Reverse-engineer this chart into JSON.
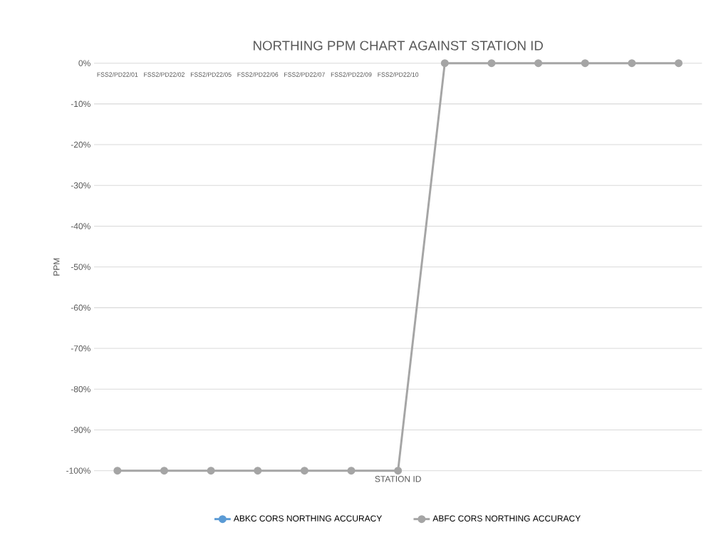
{
  "chart_data": {
    "type": "line",
    "title": "NORTHING PPM CHART AGAINST STATION ID",
    "xlabel": "STATION ID",
    "ylabel": "PPM",
    "categories": [
      "FSS2/PD22/01",
      "FSS2/PD22/02",
      "FSS2/PD22/05",
      "FSS2/PD22/06",
      "FSS2/PD22/07",
      "FSS2/PD22/09",
      "FSS2/PD22/10",
      null,
      null,
      null,
      null,
      null,
      null
    ],
    "series": [
      {
        "name": "ABKC CORS NORTHING ACCURACY",
        "color": "#5b9bd5",
        "values": [
          null,
          null,
          null,
          null,
          null,
          null,
          null,
          null,
          null,
          null,
          null,
          null,
          null
        ]
      },
      {
        "name": "ABFC CORS NORTHING ACCURACY",
        "color": "#a5a5a5",
        "values": [
          -100,
          -100,
          -100,
          -100,
          -100,
          -100,
          -100,
          0,
          0,
          0,
          0,
          0,
          0
        ]
      }
    ],
    "ylim": [
      -100,
      0
    ],
    "yticks": [
      {
        "value": 0,
        "label": "0%"
      },
      {
        "value": -10,
        "label": "-10%"
      },
      {
        "value": -20,
        "label": "-20%"
      },
      {
        "value": -30,
        "label": "-30%"
      },
      {
        "value": -40,
        "label": "-40%"
      },
      {
        "value": -50,
        "label": "-50%"
      },
      {
        "value": -60,
        "label": "-60%"
      },
      {
        "value": -70,
        "label": "-70%"
      },
      {
        "value": -80,
        "label": "-80%"
      },
      {
        "value": -90,
        "label": "-90%"
      },
      {
        "value": -100,
        "label": "-100%"
      }
    ],
    "grid": "y",
    "legend": "bottom",
    "marker": "circle"
  }
}
